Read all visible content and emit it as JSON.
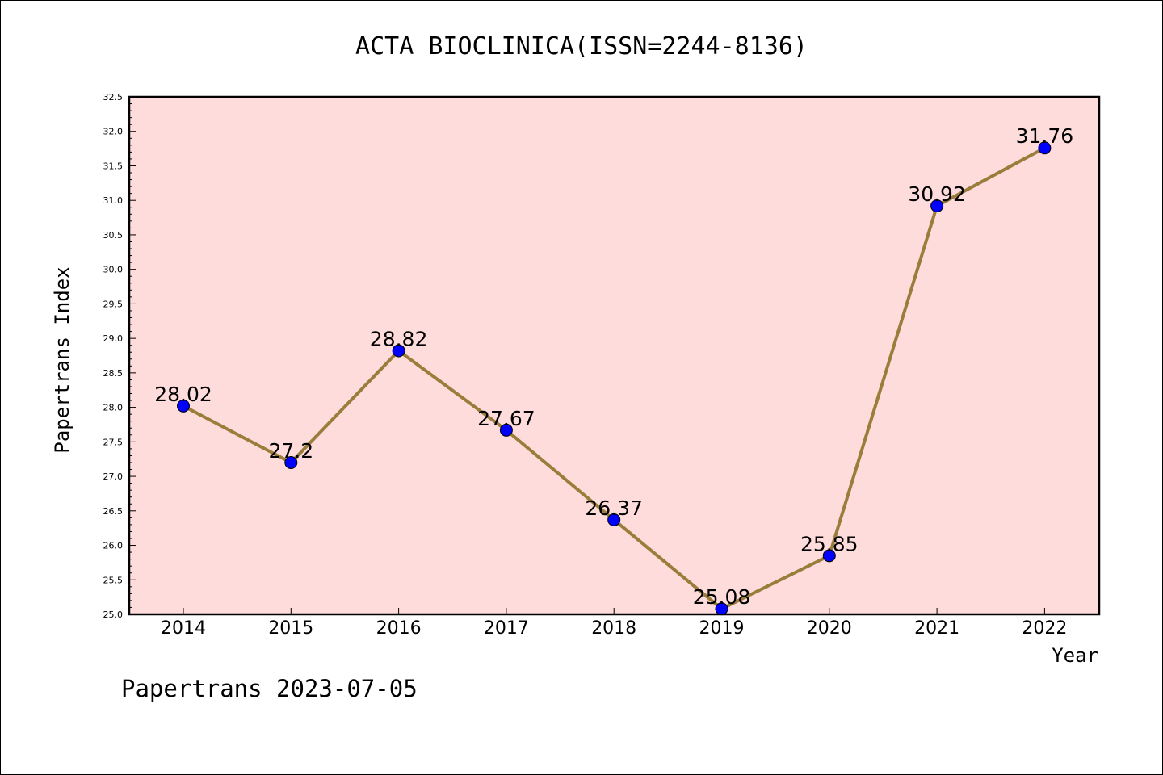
{
  "chart_data": {
    "type": "line",
    "title": "ACTA BIOCLINICA(ISSN=2244-8136)",
    "xlabel": "Year",
    "ylabel": "Papertrans Index",
    "categories": [
      "2014",
      "2015",
      "2016",
      "2017",
      "2018",
      "2019",
      "2020",
      "2021",
      "2022"
    ],
    "values": [
      28.02,
      27.2,
      28.82,
      27.67,
      26.37,
      25.08,
      25.85,
      30.92,
      31.76
    ],
    "data_labels": [
      "28.02",
      "27.2",
      "28.82",
      "27.67",
      "26.37",
      "25.08",
      "25.85",
      "30.92",
      "31.76"
    ],
    "ylim": [
      25.0,
      32.5
    ],
    "yticks": [
      "25.0",
      "25.5",
      "26.0",
      "26.5",
      "27.0",
      "27.5",
      "28.0",
      "28.5",
      "29.0",
      "29.5",
      "30.0",
      "30.5",
      "31.0",
      "31.5",
      "32.0",
      "32.5"
    ],
    "grid": false,
    "colors": {
      "plot_background": "#ffdcdc",
      "line": "#9a7d3a",
      "marker": "#0000ff"
    }
  },
  "footer": "Papertrans 2023-07-05"
}
